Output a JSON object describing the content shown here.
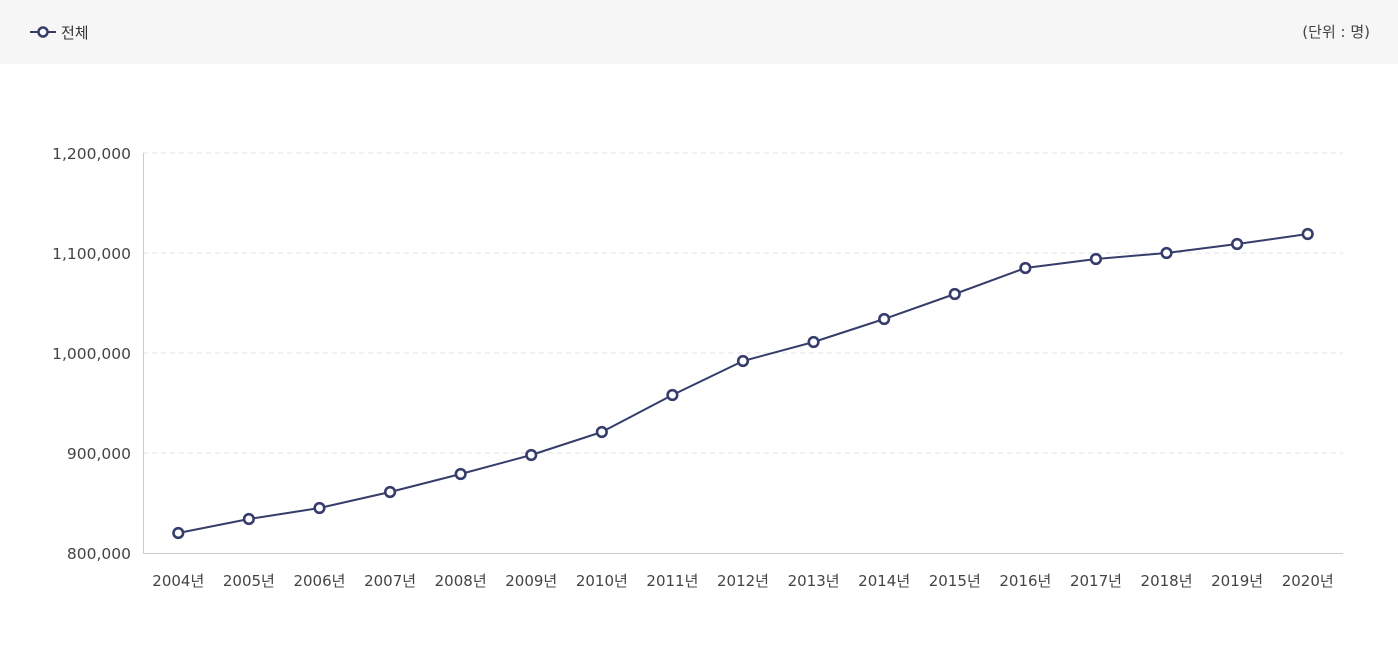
{
  "legend": {
    "label": "전체",
    "icon": "circle-marker-line-icon"
  },
  "unit_label": "(단위 : 명)",
  "colors": {
    "series": "#363d6b",
    "grid": "#e3e3e3",
    "axis": "#cccccc",
    "legend_bg": "#f6f6f6"
  },
  "chart_data": {
    "type": "line",
    "x": [
      "2004년",
      "2005년",
      "2006년",
      "2007년",
      "2008년",
      "2009년",
      "2010년",
      "2011년",
      "2012년",
      "2013년",
      "2014년",
      "2015년",
      "2016년",
      "2017년",
      "2018년",
      "2019년",
      "2020년"
    ],
    "series": [
      {
        "name": "전체",
        "values": [
          820000,
          834000,
          845000,
          861000,
          879000,
          898000,
          921000,
          958000,
          992000,
          1011000,
          1034000,
          1059000,
          1085000,
          1094000,
          1100000,
          1109000,
          1119000
        ]
      }
    ],
    "ylim": [
      800000,
      1200000
    ],
    "yticks": [
      800000,
      900000,
      1000000,
      1100000,
      1200000
    ],
    "ytick_labels": [
      "800,000",
      "900,000",
      "1,000,000",
      "1,100,000",
      "1,200,000"
    ],
    "grid": true,
    "legend_position": "top-left"
  }
}
